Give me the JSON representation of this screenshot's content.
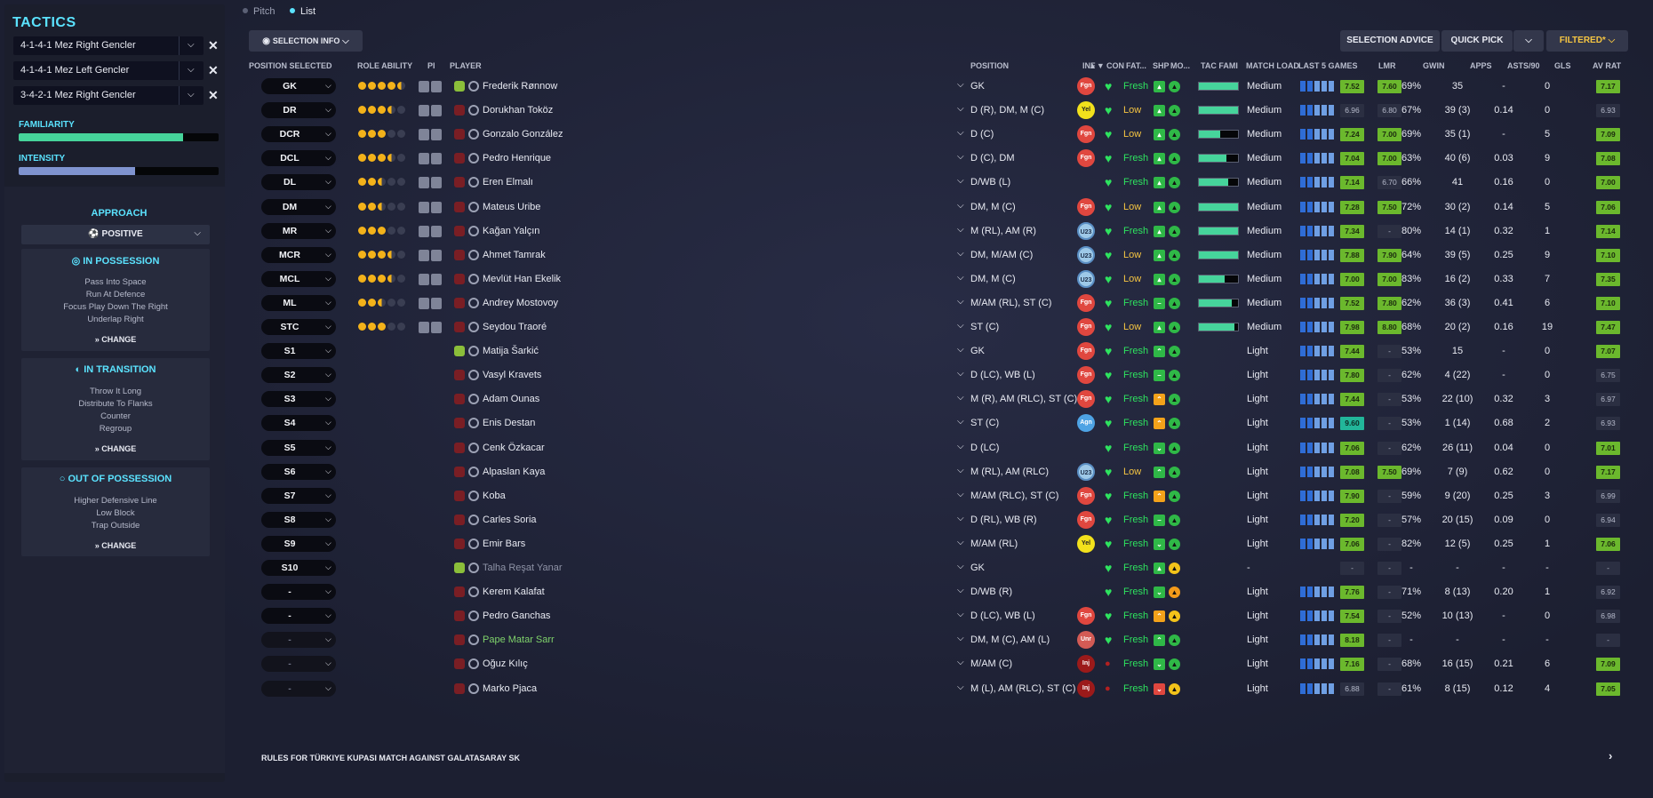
{
  "sidebar": {
    "title": "TACTICS",
    "tactics": [
      {
        "name": "4-1-4-1 Mez Right Gencler"
      },
      {
        "name": "4-1-4-1 Mez Left Gencler"
      },
      {
        "name": "3-4-2-1 Mez Right Gencler"
      }
    ],
    "familiarity": {
      "label": "FAMILIARITY",
      "level": 0.82
    },
    "intensity": {
      "label": "INTENSITY",
      "level": 0.58
    },
    "approach": {
      "heading": "APPROACH",
      "value": "POSITIVE"
    },
    "in_possession": {
      "title": "IN POSSESSION",
      "items": [
        "Pass Into Space",
        "Run At Defence",
        "Focus Play Down The Right",
        "Underlap Right"
      ],
      "change": "CHANGE"
    },
    "in_transition": {
      "title": "IN TRANSITION",
      "items": [
        "Throw It Long",
        "Distribute To Flanks",
        "Counter",
        "Regroup"
      ],
      "change": "CHANGE"
    },
    "out_of_possession": {
      "title": "OUT OF POSSESSION",
      "items": [
        "Higher Defensive Line",
        "Low Block",
        "Trap Outside"
      ],
      "change": "CHANGE"
    }
  },
  "tabs": {
    "pitch": "Pitch",
    "list": "List"
  },
  "toolbar": {
    "selection_info": "SELECTION INFO",
    "selection_advice": "SELECTION ADVICE",
    "quick_pick": "QUICK PICK",
    "filtered": "FILTERED*"
  },
  "colors": {
    "accent": "#5be3ff",
    "rating": "#6bb82d",
    "fresh": "#2ee35f",
    "filtered": "#f5c542"
  },
  "columns": [
    "POSITION SELECTED",
    "ROLE ABILITY",
    "PI",
    "PLAYER",
    "POSITION",
    "INF",
    "CON",
    "FAT...",
    "SHP",
    "MO...",
    "TAC FAMI",
    "MATCH LOAD",
    "LAST 5 GAMES",
    "LMR",
    "GWIN",
    "APPS",
    "ASTS/90",
    "GLS",
    "AV RAT"
  ],
  "players": [
    {
      "sel": "GK",
      "stars": 4.5,
      "name": "Frederik Rønnow",
      "pos": "GK",
      "inf": "Fgn",
      "fat": "Fresh",
      "shp": "up",
      "mor": "good",
      "tac": 1.0,
      "load": "Medium",
      "l5": "7.52",
      "lmr": "7.60",
      "gwin": "69%",
      "apps": "35",
      "asts": "-",
      "gls": "0",
      "avr": "7.17",
      "shirt": "#8bbf3a",
      "pi": true
    },
    {
      "sel": "DR",
      "stars": 3.5,
      "name": "Dorukhan Toköz",
      "pos": "D (R), DM, M (C)",
      "inf": "Yel",
      "fat": "Low",
      "shp": "up",
      "mor": "good",
      "tac": 1.0,
      "load": "Medium",
      "l5": "6.96",
      "lmr": "6.80",
      "gwin": "67%",
      "apps": "39 (3)",
      "asts": "0.14",
      "gls": "0",
      "avr": "6.93",
      "shirt": "#7a1e24",
      "pi": true
    },
    {
      "sel": "DCR",
      "stars": 3.0,
      "name": "Gonzalo González",
      "pos": "D (C)",
      "inf": "Fgn",
      "fat": "Low",
      "shp": "up",
      "mor": "good",
      "tac": 0.55,
      "load": "Medium",
      "l5": "7.24",
      "lmr": "7.00",
      "gwin": "69%",
      "apps": "35 (1)",
      "asts": "-",
      "gls": "5",
      "avr": "7.09",
      "shirt": "#7a1e24",
      "pi": true
    },
    {
      "sel": "DCL",
      "stars": 3.5,
      "name": "Pedro Henrique",
      "pos": "D (C), DM",
      "inf": "Fgn",
      "fat": "Fresh",
      "shp": "up",
      "mor": "good",
      "tac": 0.7,
      "load": "Medium",
      "l5": "7.04",
      "lmr": "7.00",
      "gwin": "63%",
      "apps": "40 (6)",
      "asts": "0.03",
      "gls": "9",
      "avr": "7.08",
      "shirt": "#7a1e24",
      "pi": true
    },
    {
      "sel": "DL",
      "stars": 2.5,
      "name": "Eren Elmalı",
      "pos": "D/WB (L)",
      "inf": "",
      "fat": "Fresh",
      "shp": "up",
      "mor": "good",
      "tac": 0.75,
      "load": "Medium",
      "l5": "7.14",
      "lmr": "6.70",
      "gwin": "66%",
      "apps": "41",
      "asts": "0.16",
      "gls": "0",
      "avr": "7.00",
      "shirt": "#7a1e24",
      "pi": true
    },
    {
      "sel": "DM",
      "stars": 2.5,
      "name": "Mateus Uribe",
      "pos": "DM, M (C)",
      "inf": "Fgn",
      "fat": "Low",
      "shp": "up",
      "mor": "good",
      "tac": 1.0,
      "load": "Medium",
      "l5": "7.28",
      "lmr": "7.50",
      "gwin": "72%",
      "apps": "30 (2)",
      "asts": "0.14",
      "gls": "5",
      "avr": "7.06",
      "shirt": "#7a1e24",
      "pi": true
    },
    {
      "sel": "MR",
      "stars": 3.0,
      "name": "Kağan Yalçın",
      "pos": "M (RL), AM (R)",
      "inf": "U23",
      "fat": "Fresh",
      "shp": "up",
      "mor": "good",
      "tac": 1.0,
      "load": "Medium",
      "l5": "7.34",
      "lmr": "-",
      "gwin": "80%",
      "apps": "14 (1)",
      "asts": "0.32",
      "gls": "1",
      "avr": "7.14",
      "shirt": "#7a1e24",
      "pi": true
    },
    {
      "sel": "MCR",
      "stars": 3.5,
      "name": "Ahmet Tamrak",
      "pos": "DM, M/AM (C)",
      "inf": "U23",
      "fat": "Low",
      "shp": "up",
      "mor": "good",
      "tac": 1.0,
      "load": "Medium",
      "l5": "7.88",
      "lmr": "7.90",
      "gwin": "64%",
      "apps": "39 (5)",
      "asts": "0.25",
      "gls": "9",
      "avr": "7.10",
      "shirt": "#7a1e24",
      "pi": true
    },
    {
      "sel": "MCL",
      "stars": 3.5,
      "name": "Mevlüt Han Ekelik",
      "pos": "DM, M (C)",
      "inf": "U23",
      "fat": "Low",
      "shp": "up",
      "mor": "good",
      "tac": 0.65,
      "load": "Medium",
      "l5": "7.00",
      "lmr": "7.00",
      "gwin": "83%",
      "apps": "16 (2)",
      "asts": "0.33",
      "gls": "7",
      "avr": "7.35",
      "shirt": "#7a1e24",
      "pi": true
    },
    {
      "sel": "ML",
      "stars": 2.5,
      "name": "Andrey Mostovoy",
      "pos": "M/AM (RL), ST (C)",
      "inf": "Fgn",
      "fat": "Fresh",
      "shp": "same",
      "mor": "good",
      "tac": 0.85,
      "load": "Medium",
      "l5": "7.52",
      "lmr": "7.80",
      "gwin": "62%",
      "apps": "36 (3)",
      "asts": "0.41",
      "gls": "6",
      "avr": "7.10",
      "shirt": "#7a1e24",
      "pi": true
    },
    {
      "sel": "STC",
      "stars": 3.0,
      "name": "Seydou Traoré",
      "pos": "ST (C)",
      "inf": "Fgn",
      "fat": "Low",
      "shp": "up",
      "mor": "good",
      "tac": 0.9,
      "load": "Medium",
      "l5": "7.98",
      "lmr": "8.80",
      "gwin": "68%",
      "apps": "20 (2)",
      "asts": "0.16",
      "gls": "19",
      "avr": "7.47",
      "shirt": "#7a1e24",
      "pi": true
    },
    {
      "sel": "S1",
      "stars": 0,
      "name": "Matija Šarkić",
      "pos": "GK",
      "inf": "Fgn",
      "fat": "Fresh",
      "shp": "up2",
      "mor": "good",
      "tac": 0,
      "load": "Light",
      "l5": "7.44",
      "lmr": "-",
      "gwin": "53%",
      "apps": "15",
      "asts": "-",
      "gls": "0",
      "avr": "7.07",
      "shirt": "#8bbf3a",
      "pi": false
    },
    {
      "sel": "S2",
      "stars": 0,
      "name": "Vasyl Kravets",
      "pos": "D (LC), WB (L)",
      "inf": "Fgn",
      "fat": "Fresh",
      "shp": "same",
      "mor": "good",
      "tac": 0,
      "load": "Light",
      "l5": "7.80",
      "lmr": "-",
      "gwin": "62%",
      "apps": "4 (22)",
      "asts": "-",
      "gls": "0",
      "avr": "6.75",
      "shirt": "#7a1e24",
      "pi": false
    },
    {
      "sel": "S3",
      "stars": 0,
      "name": "Adam Ounas",
      "pos": "M (R), AM (RLC), ST (C)",
      "inf": "Fgn",
      "fat": "Fresh",
      "shp": "up2o",
      "mor": "good",
      "tac": 0,
      "load": "Light",
      "l5": "7.44",
      "lmr": "-",
      "gwin": "53%",
      "apps": "22 (10)",
      "asts": "0.32",
      "gls": "3",
      "avr": "6.97",
      "shirt": "#7a1e24",
      "pi": false
    },
    {
      "sel": "S4",
      "stars": 0,
      "name": "Enis Destan",
      "pos": "ST (C)",
      "inf": "Agn",
      "fat": "Fresh",
      "shp": "up2o",
      "mor": "good",
      "tac": 0,
      "load": "Light",
      "l5": "9.60",
      "lmr": "-",
      "gwin": "53%",
      "apps": "1 (14)",
      "asts": "0.68",
      "gls": "2",
      "avr": "6.93",
      "shirt": "#7a1e24",
      "pi": false
    },
    {
      "sel": "S5",
      "stars": 0,
      "name": "Cenk Özkacar",
      "pos": "D (LC)",
      "inf": "",
      "fat": "Fresh",
      "shp": "down",
      "mor": "good",
      "tac": 0,
      "load": "Light",
      "l5": "7.06",
      "lmr": "-",
      "gwin": "62%",
      "apps": "26 (11)",
      "asts": "0.04",
      "gls": "0",
      "avr": "7.01",
      "shirt": "#7a1e24",
      "pi": false
    },
    {
      "sel": "S6",
      "stars": 0,
      "name": "Alpaslan Kaya",
      "pos": "M (RL), AM (RLC)",
      "inf": "U23",
      "fat": "Low",
      "shp": "up2",
      "mor": "good",
      "tac": 0,
      "load": "Light",
      "l5": "7.08",
      "lmr": "7.50",
      "gwin": "69%",
      "apps": "7 (9)",
      "asts": "0.62",
      "gls": "0",
      "avr": "7.17",
      "shirt": "#7a1e24",
      "pi": false
    },
    {
      "sel": "S7",
      "stars": 0,
      "name": "Koba",
      "pos": "M/AM (RLC), ST (C)",
      "inf": "Fgn",
      "fat": "Fresh",
      "shp": "up2o",
      "mor": "good",
      "tac": 0,
      "load": "Light",
      "l5": "7.90",
      "lmr": "-",
      "gwin": "59%",
      "apps": "9 (20)",
      "asts": "0.25",
      "gls": "3",
      "avr": "6.99",
      "shirt": "#7a1e24",
      "pi": false
    },
    {
      "sel": "S8",
      "stars": 0,
      "name": "Carles Soria",
      "pos": "D (RL), WB (R)",
      "inf": "Fgn",
      "fat": "Fresh",
      "shp": "same",
      "mor": "good",
      "tac": 0,
      "load": "Light",
      "l5": "7.20",
      "lmr": "-",
      "gwin": "57%",
      "apps": "20 (15)",
      "asts": "0.09",
      "gls": "0",
      "avr": "6.94",
      "shirt": "#7a1e24",
      "pi": false
    },
    {
      "sel": "S9",
      "stars": 0,
      "name": "Emir Bars",
      "pos": "M/AM (RL)",
      "inf": "Yel",
      "fat": "Fresh",
      "shp": "down",
      "mor": "good",
      "tac": 0,
      "load": "Light",
      "l5": "7.06",
      "lmr": "-",
      "gwin": "82%",
      "apps": "12 (5)",
      "asts": "0.25",
      "gls": "1",
      "avr": "7.06",
      "shirt": "#7a1e24",
      "pi": false
    },
    {
      "sel": "S10",
      "stars": 0,
      "name": "Talha Reşat Yanar",
      "pos": "GK",
      "inf": "",
      "fat": "Fresh",
      "shp": "up",
      "mor": "ok",
      "tac": 0,
      "load": "-",
      "l5": "-",
      "lmr": "-",
      "gwin": "-",
      "apps": "-",
      "asts": "-",
      "gls": "-",
      "avr": "-",
      "shirt": "#8bbf3a",
      "pi": false,
      "dim": true
    },
    {
      "sel": "-",
      "stars": 0,
      "name": "Kerem Kalafat",
      "pos": "D/WB (R)",
      "inf": "",
      "fat": "Fresh",
      "shp": "down",
      "mor": "bad",
      "tac": 0,
      "load": "Light",
      "l5": "7.76",
      "lmr": "-",
      "gwin": "71%",
      "apps": "8 (13)",
      "asts": "0.20",
      "gls": "1",
      "avr": "6.92",
      "shirt": "#7a1e24",
      "pi": false
    },
    {
      "sel": "-",
      "stars": 0,
      "name": "Pedro Ganchas",
      "pos": "D (LC), WB (L)",
      "inf": "Fgn",
      "fat": "Fresh",
      "shp": "up2o",
      "mor": "ok",
      "tac": 0,
      "load": "Light",
      "l5": "7.54",
      "lmr": "-",
      "gwin": "52%",
      "apps": "10 (13)",
      "asts": "-",
      "gls": "0",
      "avr": "6.98",
      "shirt": "#7a1e24",
      "pi": false
    },
    {
      "sel": "-",
      "stars": 0,
      "name": "Pape Matar Sarr",
      "pos": "DM, M (C), AM (L)",
      "inf": "Unr",
      "fat": "Fresh",
      "shp": "up2",
      "mor": "good",
      "tac": 0,
      "load": "Light",
      "l5": "8.18",
      "lmr": "-",
      "gwin": "-",
      "apps": "-",
      "asts": "-",
      "gls": "-",
      "avr": "-",
      "shirt": "#7a1e24",
      "pi": false,
      "green": true,
      "dimsel": true
    },
    {
      "sel": "-",
      "stars": 0,
      "name": "Oğuz Kılıç",
      "pos": "M/AM (C)",
      "inf": "Inj",
      "fat": "Fresh",
      "shp": "down",
      "mor": "good",
      "tac": 0,
      "load": "Light",
      "l5": "7.16",
      "lmr": "-",
      "gwin": "68%",
      "apps": "16 (15)",
      "asts": "0.21",
      "gls": "6",
      "avr": "7.09",
      "shirt": "#7a1e24",
      "pi": false,
      "injured": true,
      "dimsel": true
    },
    {
      "sel": "-",
      "stars": 0,
      "name": "Marko Pjaca",
      "pos": "M (L), AM (RLC), ST (C)",
      "inf": "Inj",
      "fat": "Fresh",
      "shp": "downr",
      "mor": "ok",
      "tac": 0,
      "load": "Light",
      "l5": "6.88",
      "lmr": "-",
      "gwin": "61%",
      "apps": "8 (15)",
      "asts": "0.12",
      "gls": "4",
      "avr": "7.05",
      "shirt": "#7a1e24",
      "pi": false,
      "injured": true,
      "dimsel": true
    }
  ],
  "footer": {
    "text": "RULES FOR TÜRKIYE KUPASI MATCH AGAINST GALATASARAY SK"
  }
}
